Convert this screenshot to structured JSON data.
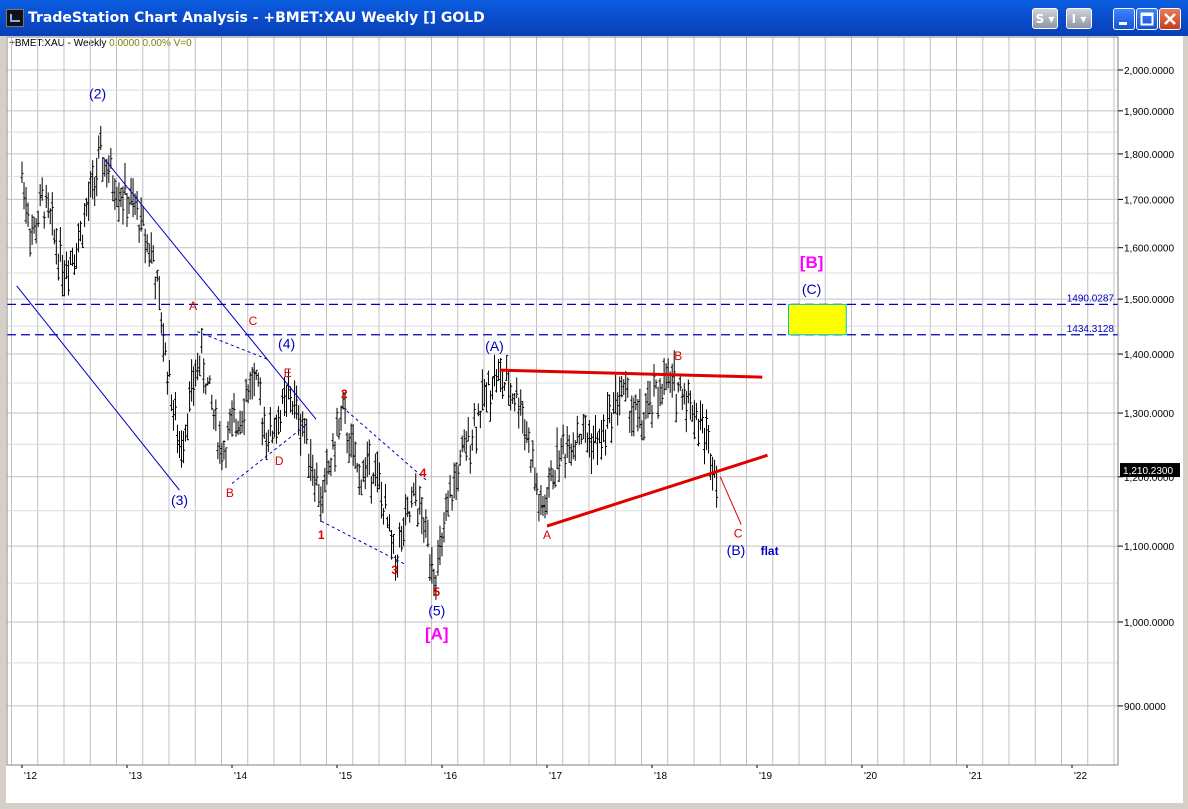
{
  "window": {
    "title": "TradeStation Chart Analysis - +BMET:XAU Weekly [] GOLD",
    "s_button": "S",
    "i_button": "I"
  },
  "info": {
    "symbol": "+BMET:XAU - Weekly",
    "value1": "0.0000",
    "value2": "0.00%",
    "volume": "V=0"
  },
  "chart_data": {
    "type": "ohlc",
    "x_axis": {
      "ticks": [
        "'12",
        "'13",
        "'14",
        "'15",
        "'16",
        "'17",
        "'18",
        "'19",
        "'20",
        "'21",
        "'22"
      ]
    },
    "y_axis": {
      "scale": "log",
      "ticks": [
        "2,000.0000",
        "1,900.0000",
        "1,800.0000",
        "1,700.0000",
        "1,600.0000",
        "1,500.0000",
        "1,400.0000",
        "1,300.0000",
        "1,200.0000",
        "1,100.0000",
        "1,000.0000",
        "900.0000"
      ]
    },
    "price_path": [
      [
        2012.0,
        1750
      ],
      [
        2012.1,
        1620
      ],
      [
        2012.2,
        1700
      ],
      [
        2012.4,
        1560
      ],
      [
        2012.55,
        1620
      ],
      [
        2012.75,
        1790
      ],
      [
        2012.9,
        1730
      ],
      [
        2013.1,
        1670
      ],
      [
        2013.25,
        1580
      ],
      [
        2013.35,
        1420
      ],
      [
        2013.5,
        1240
      ],
      [
        2013.7,
        1400
      ],
      [
        2013.9,
        1240
      ],
      [
        2014.05,
        1290
      ],
      [
        2014.2,
        1360
      ],
      [
        2014.35,
        1260
      ],
      [
        2014.55,
        1330
      ],
      [
        2014.7,
        1270
      ],
      [
        2014.85,
        1160
      ],
      [
        2015.05,
        1300
      ],
      [
        2015.2,
        1200
      ],
      [
        2015.35,
        1220
      ],
      [
        2015.55,
        1080
      ],
      [
        2015.75,
        1170
      ],
      [
        2015.95,
        1060
      ],
      [
        2016.1,
        1180
      ],
      [
        2016.3,
        1280
      ],
      [
        2016.5,
        1365
      ],
      [
        2016.75,
        1320
      ],
      [
        2016.95,
        1140
      ],
      [
        2017.1,
        1230
      ],
      [
        2017.3,
        1270
      ],
      [
        2017.5,
        1250
      ],
      [
        2017.7,
        1340
      ],
      [
        2017.9,
        1280
      ],
      [
        2018.1,
        1350
      ],
      [
        2018.3,
        1340
      ],
      [
        2018.5,
        1270
      ],
      [
        2018.62,
        1210
      ]
    ],
    "last_price": "1,210.2300",
    "levels": [
      {
        "label": "1490.0287",
        "value": 1490.0287
      },
      {
        "label": "1434.3128",
        "value": 1434.3128
      }
    ],
    "target_box": {
      "x0": 2019.3,
      "x1": 2019.85,
      "y0": 1434.3128,
      "y1": 1490.0287,
      "fill": "#ffff00",
      "border": "#00c0c0"
    },
    "trendlines_red": [
      {
        "x0": 2016.55,
        "y0": 1372,
        "x1": 2019.05,
        "y1": 1360
      },
      {
        "x0": 2017.0,
        "y0": 1128,
        "x1": 2019.1,
        "y1": 1233
      },
      {
        "x0": 2018.65,
        "y0": 1200,
        "x1": 2018.85,
        "y1": 1130
      }
    ],
    "channel_blue": [
      {
        "x0": 2012.78,
        "y0": 1790,
        "x1": 2014.8,
        "y1": 1290
      },
      {
        "x0": 2011.95,
        "y0": 1525,
        "x1": 2013.5,
        "y1": 1180
      }
    ],
    "dashed_blue": [
      {
        "x0": 2013.67,
        "y0": 1440,
        "x1": 2014.35,
        "y1": 1390
      },
      {
        "x0": 2014.0,
        "y0": 1190,
        "x1": 2014.7,
        "y1": 1280
      },
      {
        "x0": 2015.05,
        "y0": 1310,
        "x1": 2015.85,
        "y1": 1195
      },
      {
        "x0": 2014.85,
        "y0": 1135,
        "x1": 2015.65,
        "y1": 1075
      }
    ],
    "labels": [
      {
        "text": "(2)",
        "x": 2012.72,
        "y": 1930,
        "color": "#0000c0",
        "size": 14
      },
      {
        "text": "(3)",
        "x": 2013.5,
        "y": 1158,
        "color": "#0000c0",
        "size": 14
      },
      {
        "text": "(4)",
        "x": 2014.52,
        "y": 1410,
        "color": "#0000c0",
        "size": 14
      },
      {
        "text": "(5)",
        "x": 2015.95,
        "y": 1008,
        "color": "#0000c0",
        "size": 14
      },
      {
        "text": "[A]",
        "x": 2015.95,
        "y": 978,
        "color": "#ff00ff",
        "size": 17
      },
      {
        "text": "(A)",
        "x": 2016.5,
        "y": 1405,
        "color": "#0000c0",
        "size": 14
      },
      {
        "text": "(B)",
        "x": 2018.8,
        "y": 1088,
        "color": "#0000c0",
        "size": 14
      },
      {
        "text": "flat",
        "x": 2019.12,
        "y": 1088,
        "color": "#0000c0",
        "size": 12
      },
      {
        "text": "[B]",
        "x": 2019.52,
        "y": 1560,
        "color": "#ff00ff",
        "size": 17
      },
      {
        "text": "(C)",
        "x": 2019.52,
        "y": 1510,
        "color": "#0000c0",
        "size": 14
      },
      {
        "text": "A",
        "x": 2013.63,
        "y": 1480,
        "color": "#e00000",
        "size": 12
      },
      {
        "text": "B",
        "x": 2013.98,
        "y": 1170,
        "color": "#e00000",
        "size": 12
      },
      {
        "text": "C",
        "x": 2014.2,
        "y": 1452,
        "color": "#e00000",
        "size": 12
      },
      {
        "text": "D",
        "x": 2014.45,
        "y": 1218,
        "color": "#e00000",
        "size": 12
      },
      {
        "text": "E",
        "x": 2014.53,
        "y": 1360,
        "color": "#e00000",
        "size": 12
      },
      {
        "text": "1",
        "x": 2014.85,
        "y": 1110,
        "color": "#e00000",
        "size": 12
      },
      {
        "text": "2",
        "x": 2015.07,
        "y": 1325,
        "color": "#e00000",
        "size": 12
      },
      {
        "text": "3",
        "x": 2015.55,
        "y": 1062,
        "color": "#e00000",
        "size": 12
      },
      {
        "text": "4",
        "x": 2015.82,
        "y": 1200,
        "color": "#e00000",
        "size": 12
      },
      {
        "text": "5",
        "x": 2015.95,
        "y": 1033,
        "color": "#e00000",
        "size": 12
      },
      {
        "text": "A",
        "x": 2017.0,
        "y": 1110,
        "color": "#e00000",
        "size": 12
      },
      {
        "text": "B",
        "x": 2018.25,
        "y": 1390,
        "color": "#e00000",
        "size": 12
      },
      {
        "text": "C",
        "x": 2018.82,
        "y": 1112,
        "color": "#e00000",
        "size": 12
      }
    ]
  }
}
